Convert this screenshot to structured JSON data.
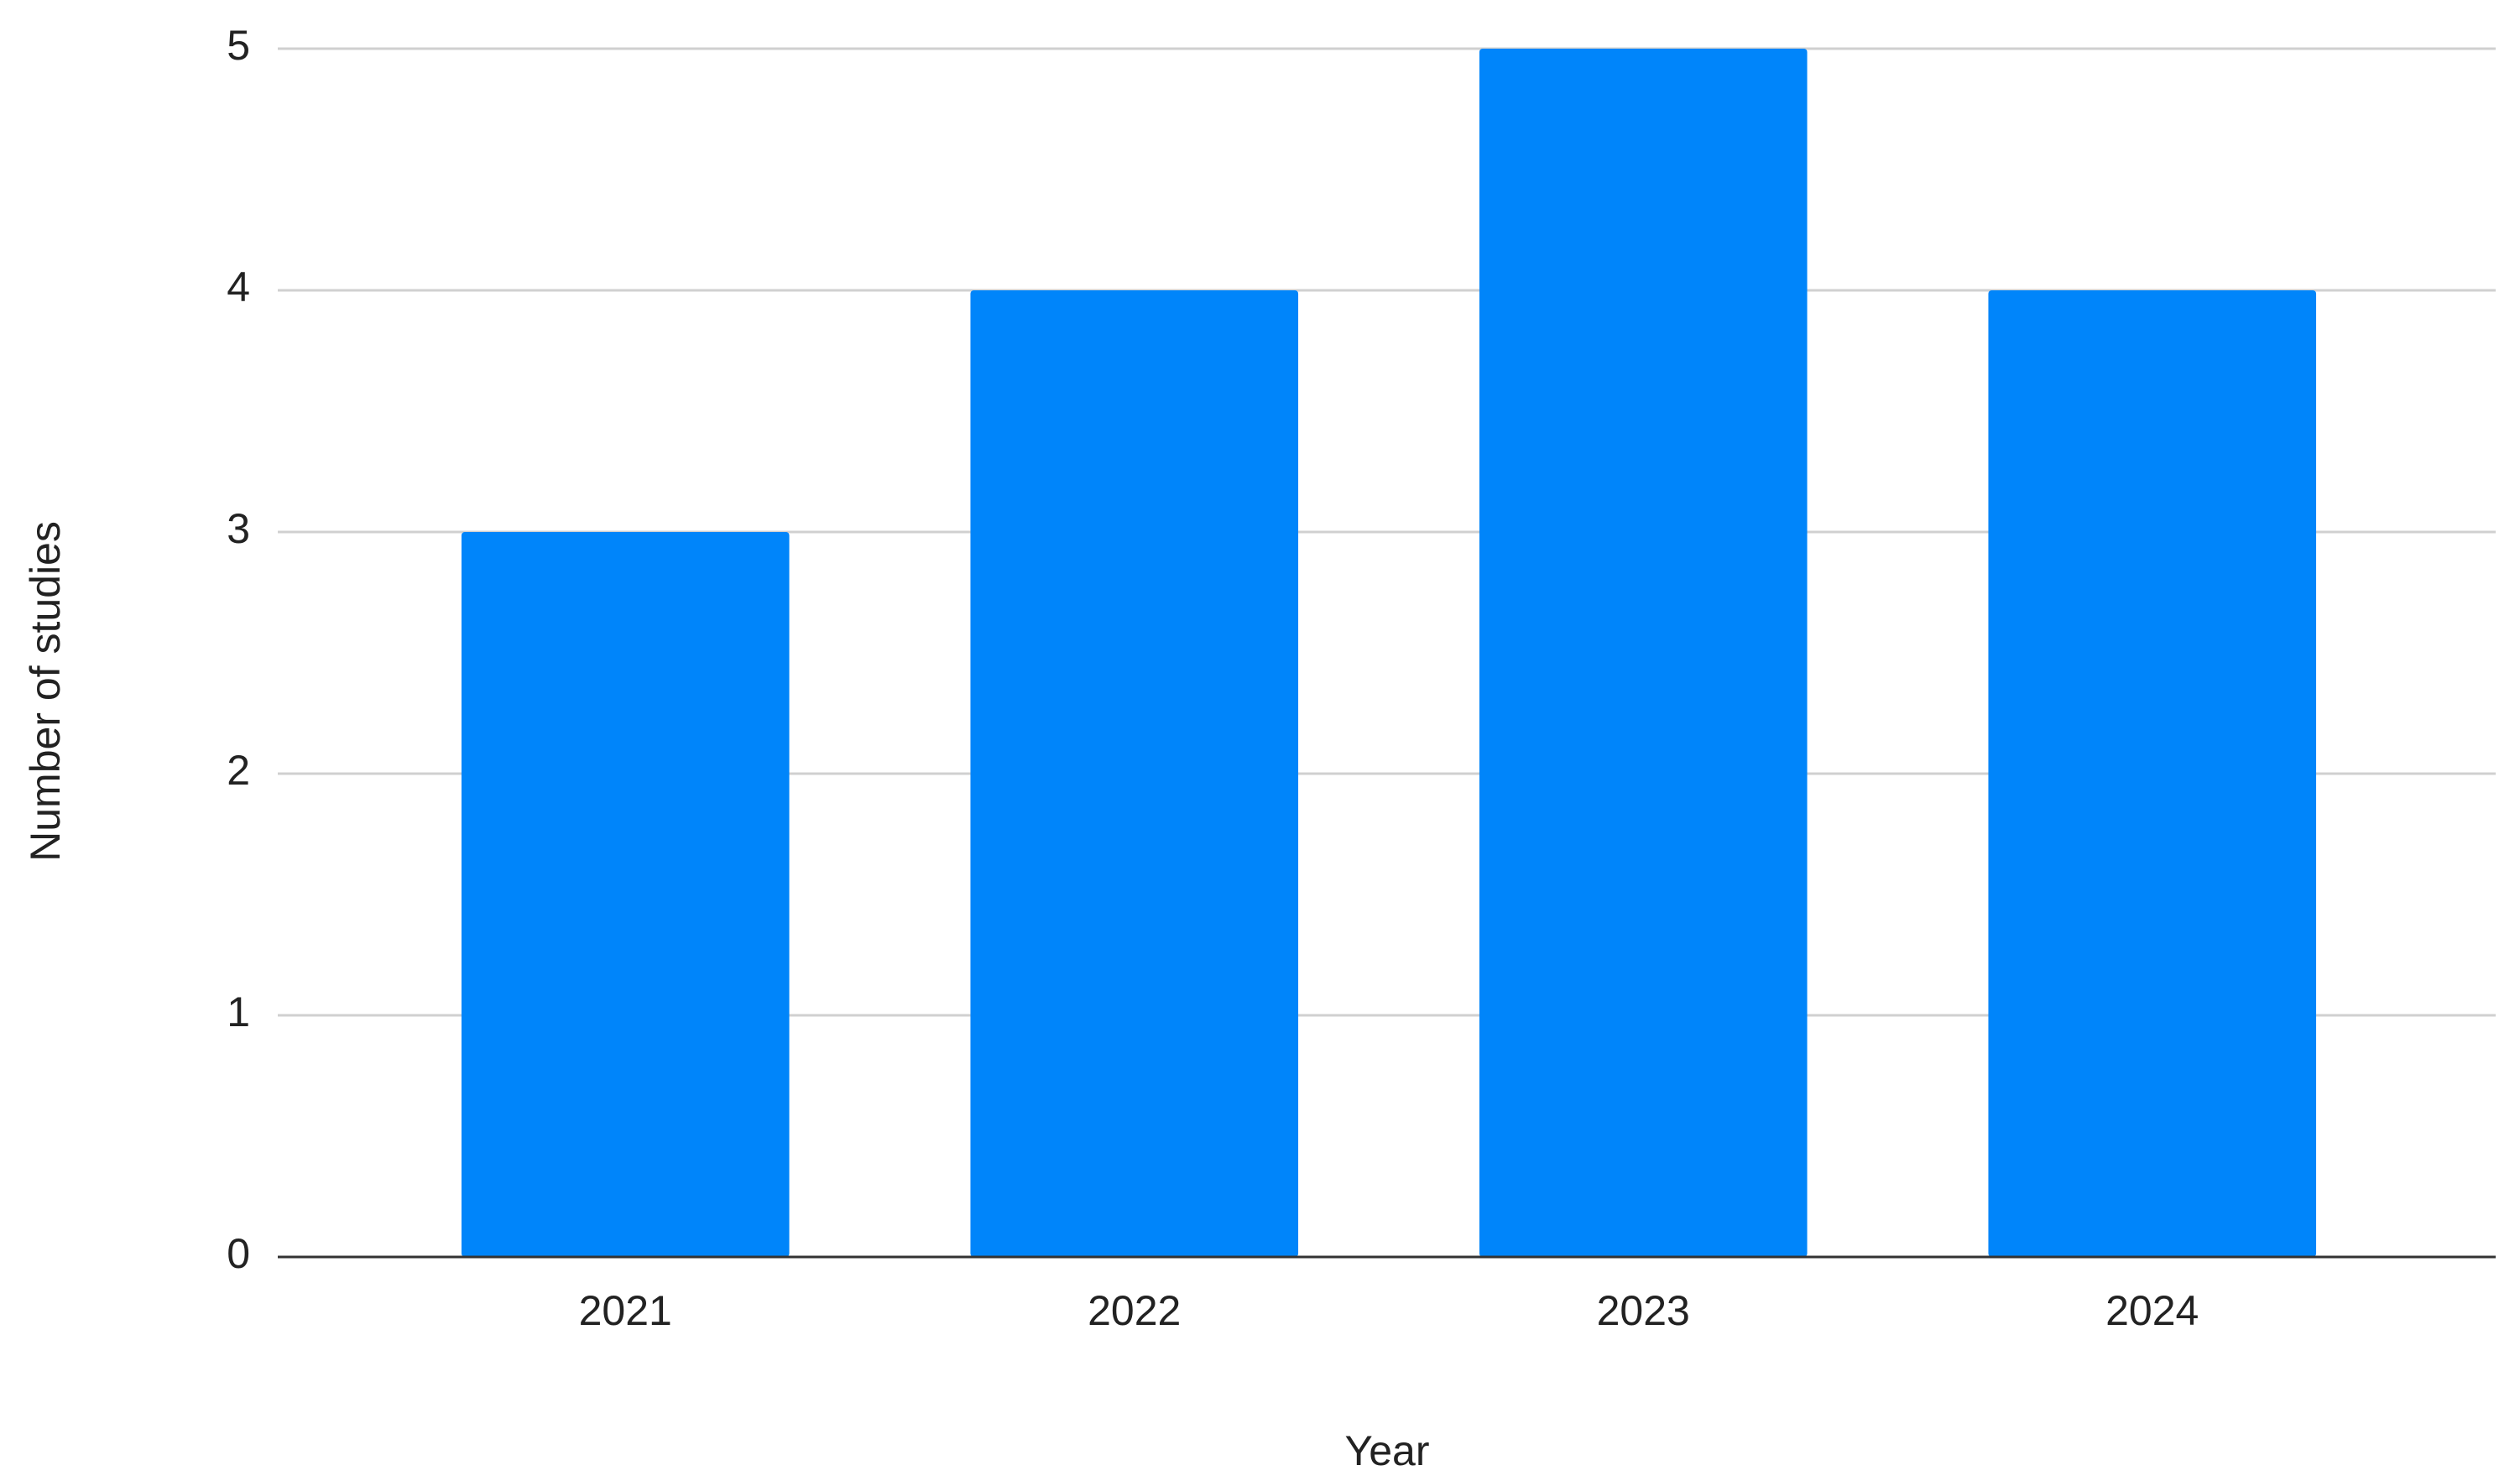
{
  "chart_data": {
    "type": "bar",
    "x_label": "Year",
    "y_label": "Number of studies",
    "categories": [
      "2021",
      "2022",
      "2023",
      "2024"
    ],
    "values": [
      3,
      4,
      5,
      4
    ],
    "color": "#0085fa",
    "ylim": [
      0,
      5
    ],
    "yticks": [
      0,
      1,
      2,
      3,
      4,
      5
    ],
    "grid": true
  }
}
